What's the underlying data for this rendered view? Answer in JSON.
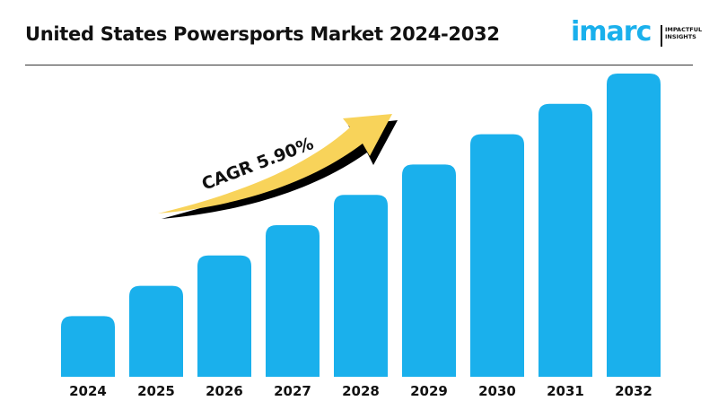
{
  "header": {
    "title": "United States Powersports Market 2024-2032"
  },
  "logo": {
    "wordmark": "imarc",
    "tagline_1": "IMPACTFUL",
    "tagline_2": "INSIGHTS"
  },
  "chart_data": {
    "type": "bar",
    "title": "United States Powersports Market 2024-2032",
    "categories": [
      "2024",
      "2025",
      "2026",
      "2027",
      "2028",
      "2029",
      "2030",
      "2031",
      "2032"
    ],
    "values": [
      20,
      30,
      40,
      50,
      60,
      70,
      80,
      90,
      100
    ],
    "ylim": [
      0,
      100
    ],
    "grid": false,
    "bar_color": "#1ab0ec",
    "annotation": "CAGR 5.90%",
    "arrow_color": "#f8d35a"
  }
}
